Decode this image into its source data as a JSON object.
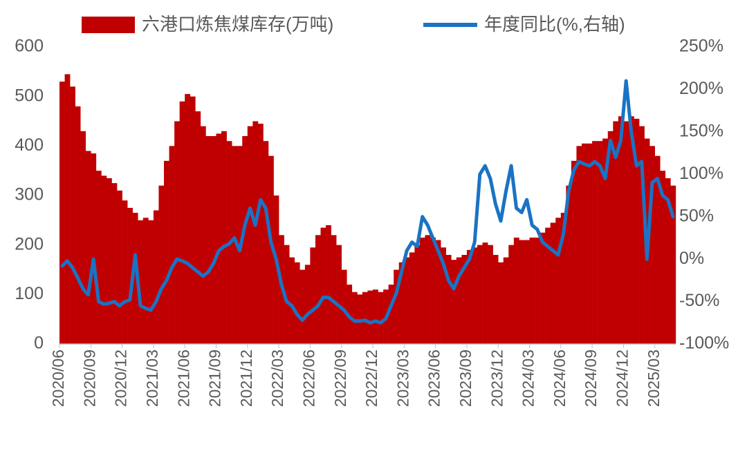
{
  "chart_data": {
    "type": "bar_line",
    "categories": [
      "2020/06",
      null,
      null,
      null,
      null,
      null,
      "2020/09",
      null,
      null,
      null,
      null,
      null,
      "2020/12",
      null,
      null,
      null,
      null,
      null,
      "2021/03",
      null,
      null,
      null,
      null,
      null,
      "2021/06",
      null,
      null,
      null,
      null,
      null,
      "2021/09",
      null,
      null,
      null,
      null,
      null,
      "2021/12",
      null,
      null,
      null,
      null,
      null,
      "2022/03",
      null,
      null,
      null,
      null,
      null,
      "2022/06",
      null,
      null,
      null,
      null,
      null,
      "2022/09",
      null,
      null,
      null,
      null,
      null,
      "2022/12",
      null,
      null,
      null,
      null,
      null,
      "2023/03",
      null,
      null,
      null,
      null,
      null,
      "2023/06",
      null,
      null,
      null,
      null,
      null,
      "2023/09",
      null,
      null,
      null,
      null,
      null,
      "2023/12",
      null,
      null,
      null,
      null,
      null,
      "2024/03",
      null,
      null,
      null,
      null,
      null,
      "2024/06",
      null,
      null,
      null,
      null,
      null,
      "2024/09",
      null,
      null,
      null,
      null,
      null,
      "2024/12",
      null,
      null,
      null,
      null,
      null,
      "2025/03",
      null,
      null,
      null
    ],
    "series": [
      {
        "name": "六港口炼焦煤库存(万吨)",
        "color": "#c00000",
        "type": "bar",
        "values": [
          530,
          545,
          520,
          480,
          430,
          390,
          385,
          350,
          340,
          335,
          325,
          310,
          290,
          275,
          265,
          250,
          255,
          250,
          270,
          320,
          370,
          400,
          450,
          490,
          505,
          500,
          470,
          440,
          420,
          420,
          425,
          430,
          410,
          400,
          400,
          420,
          440,
          450,
          445,
          410,
          380,
          300,
          220,
          200,
          175,
          165,
          150,
          160,
          195,
          220,
          235,
          240,
          220,
          200,
          150,
          120,
          105,
          100,
          105,
          108,
          110,
          105,
          110,
          120,
          150,
          165,
          175,
          185,
          200,
          215,
          220,
          215,
          210,
          195,
          180,
          170,
          175,
          180,
          190,
          195,
          200,
          205,
          200,
          180,
          165,
          175,
          200,
          215,
          210,
          210,
          215,
          215,
          225,
          235,
          245,
          255,
          265,
          320,
          370,
          400,
          405,
          405,
          410,
          410,
          415,
          430,
          450,
          460,
          450,
          460,
          455,
          440,
          415,
          400,
          380,
          350,
          335,
          320
        ]
      },
      {
        "name": "年度同比(%,右轴)",
        "color": "#1a73c4",
        "type": "line",
        "axis": "y2",
        "values": [
          -8,
          -2,
          -10,
          -22,
          -35,
          -42,
          0,
          -50,
          -53,
          -52,
          -50,
          -55,
          -50,
          -48,
          5,
          -55,
          -58,
          -60,
          -50,
          -35,
          -25,
          -10,
          0,
          -2,
          -5,
          -10,
          -15,
          -20,
          -15,
          -5,
          10,
          15,
          18,
          25,
          10,
          40,
          60,
          40,
          70,
          60,
          20,
          0,
          -30,
          -50,
          -55,
          -65,
          -72,
          -65,
          -60,
          -55,
          -45,
          -45,
          -50,
          -55,
          -60,
          -68,
          -73,
          -73,
          -72,
          -75,
          -73,
          -75,
          -70,
          -55,
          -40,
          -15,
          10,
          20,
          15,
          50,
          40,
          25,
          10,
          -5,
          -25,
          -35,
          -20,
          -10,
          0,
          20,
          100,
          110,
          95,
          65,
          45,
          80,
          110,
          60,
          55,
          70,
          40,
          35,
          20,
          15,
          10,
          5,
          30,
          80,
          105,
          115,
          112,
          110,
          115,
          110,
          95,
          140,
          120,
          140,
          210,
          150,
          110,
          115,
          0,
          90,
          95,
          75,
          70,
          50
        ]
      }
    ],
    "ylim": [
      0,
      600
    ],
    "yticks": [
      0,
      100,
      200,
      300,
      400,
      500,
      600
    ],
    "y2lim": [
      -100,
      250
    ],
    "y2ticks": [
      {
        "value": -100,
        "label": "-100%"
      },
      {
        "value": -50,
        "label": "-50%"
      },
      {
        "value": 0,
        "label": "0%"
      },
      {
        "value": 50,
        "label": "50%"
      },
      {
        "value": 100,
        "label": "100%"
      },
      {
        "value": 150,
        "label": "150%"
      },
      {
        "value": 200,
        "label": "200%"
      },
      {
        "value": 250,
        "label": "250%"
      }
    ],
    "legend": "top"
  }
}
